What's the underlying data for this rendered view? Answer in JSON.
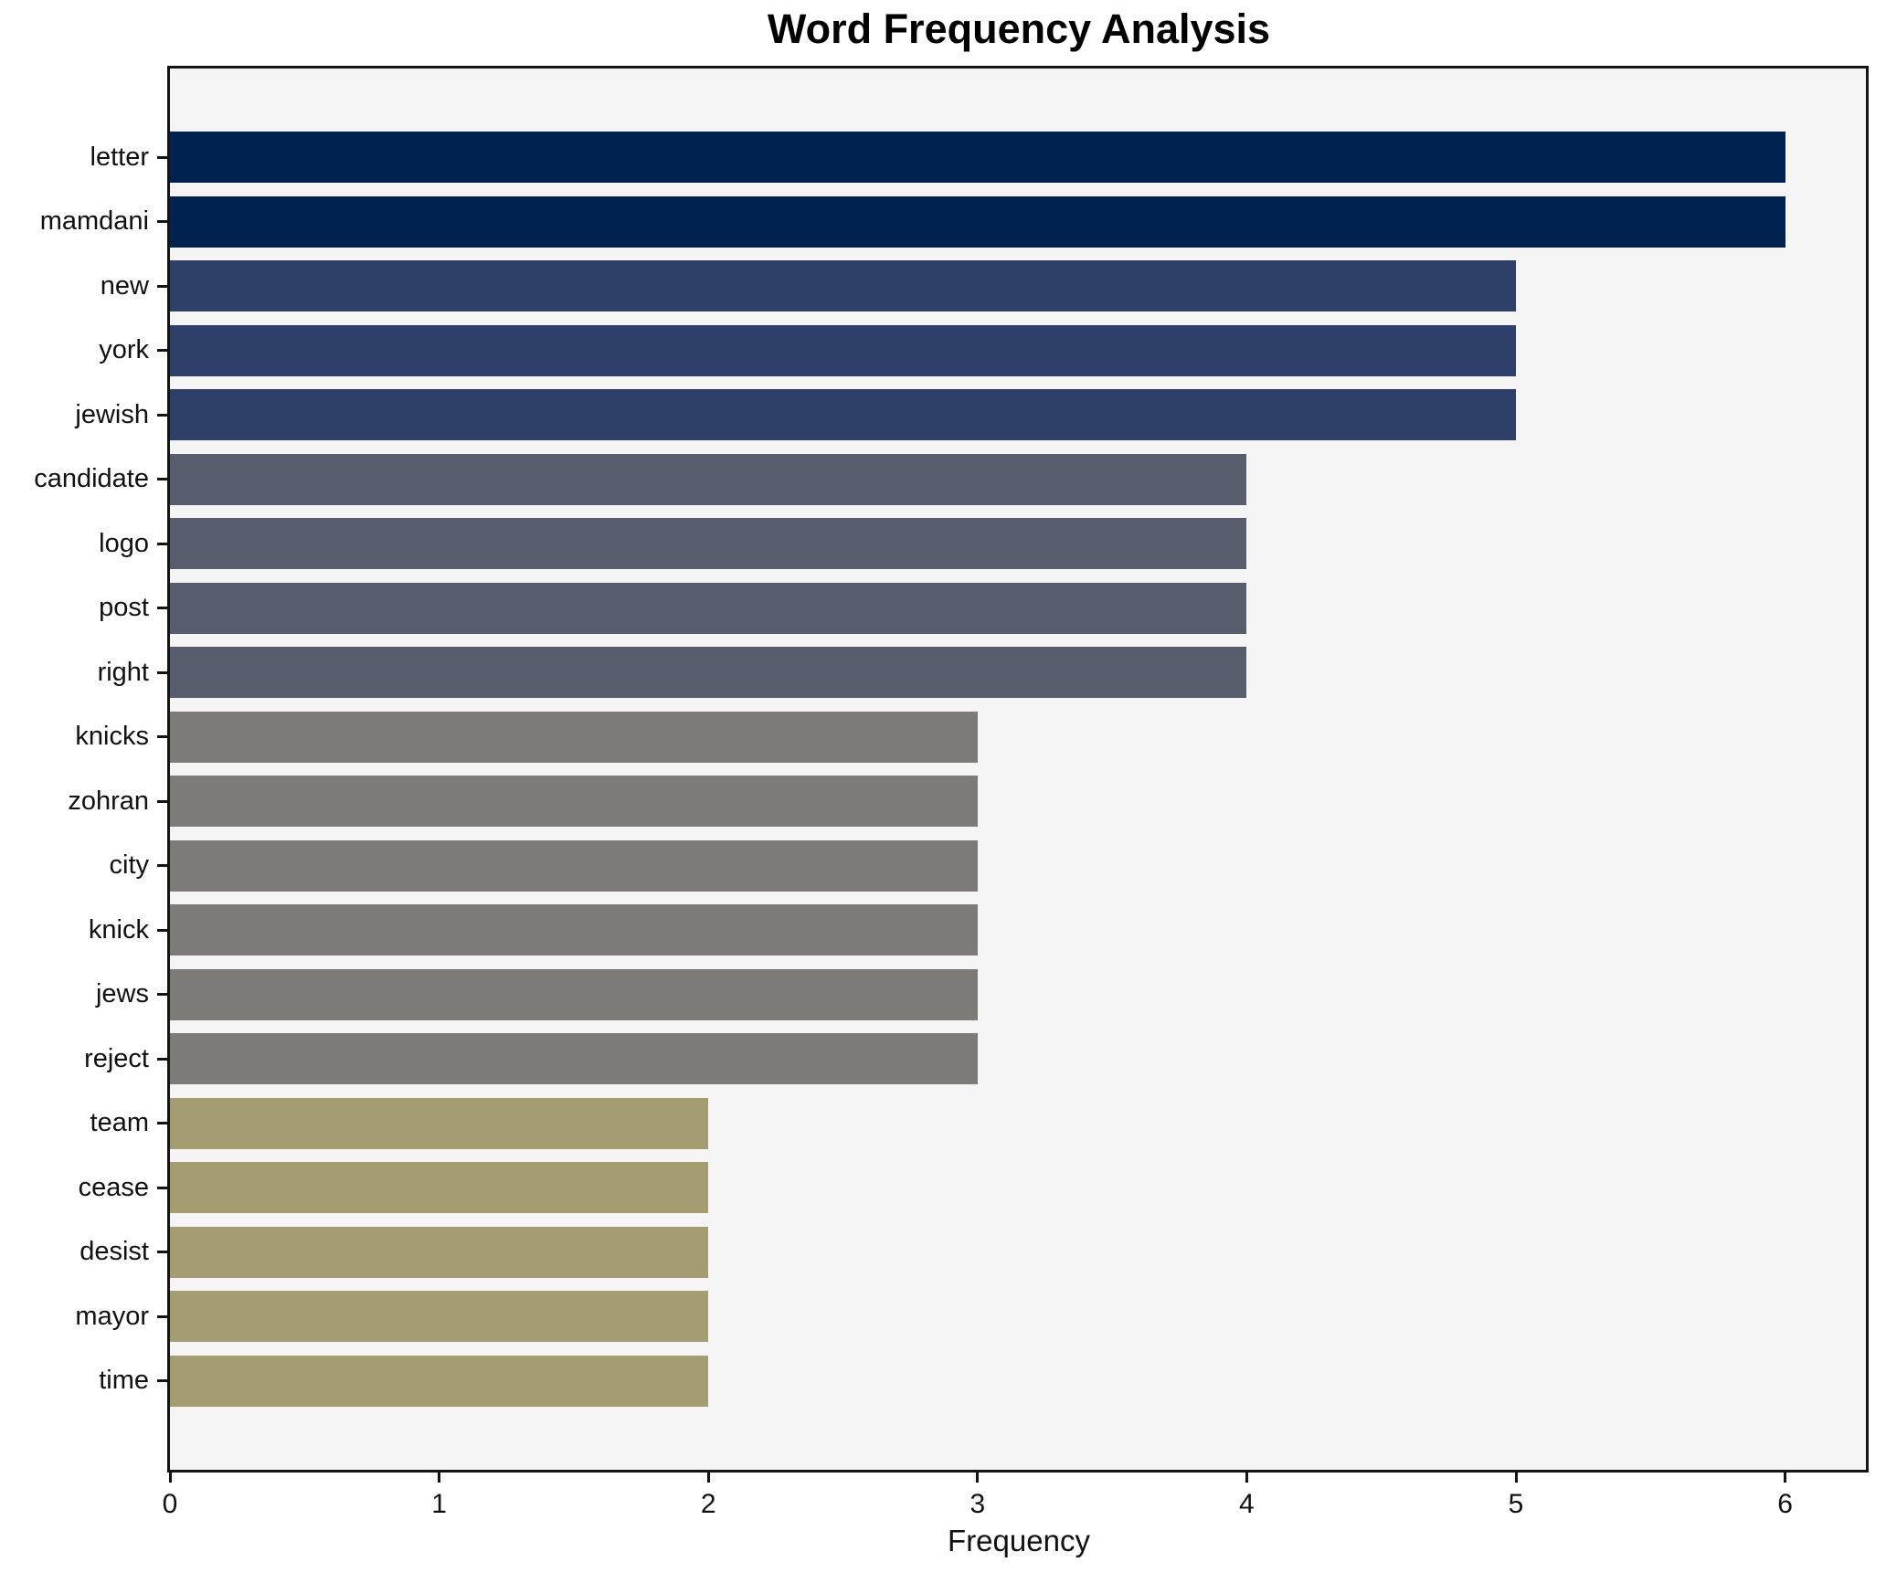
{
  "chart_data": {
    "type": "bar",
    "orientation": "horizontal",
    "title": "Word Frequency Analysis",
    "xlabel": "Frequency",
    "ylabel": "",
    "categories": [
      "letter",
      "mamdani",
      "new",
      "york",
      "jewish",
      "candidate",
      "logo",
      "post",
      "right",
      "knicks",
      "zohran",
      "city",
      "knick",
      "jews",
      "reject",
      "team",
      "cease",
      "desist",
      "mayor",
      "time"
    ],
    "values": [
      6,
      6,
      5,
      5,
      5,
      4,
      4,
      4,
      4,
      3,
      3,
      3,
      3,
      3,
      3,
      2,
      2,
      2,
      2,
      2
    ],
    "xticks": [
      0,
      1,
      2,
      3,
      4,
      5,
      6
    ],
    "xlim": [
      0,
      6.3
    ],
    "grid": false,
    "legend": null,
    "colors_by_value": {
      "6": "#00224e",
      "5": "#2e4069",
      "4": "#575d6d",
      "3": "#7c7b78",
      "2": "#a59d72"
    },
    "plot_background": "#f5f5f6",
    "figure_background": "#ffffff",
    "spine_color": "#141414"
  }
}
